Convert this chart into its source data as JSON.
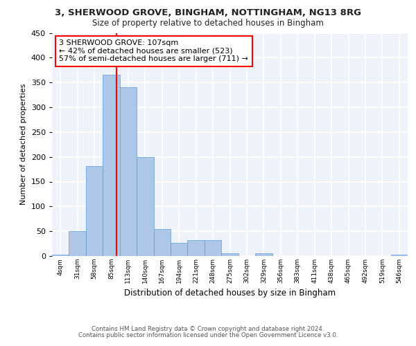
{
  "title_line1": "3, SHERWOOD GROVE, BINGHAM, NOTTINGHAM, NG13 8RG",
  "title_line2": "Size of property relative to detached houses in Bingham",
  "xlabel": "Distribution of detached houses by size in Bingham",
  "ylabel": "Number of detached properties",
  "footer_line1": "Contains HM Land Registry data © Crown copyright and database right 2024.",
  "footer_line2": "Contains public sector information licensed under the Open Government Licence v3.0.",
  "bar_edges": [
    4,
    31,
    58,
    85,
    112,
    139,
    166,
    193,
    220,
    247,
    274,
    301,
    328,
    355,
    382,
    409,
    436,
    463,
    490,
    517,
    544
  ],
  "bar_heights": [
    3,
    50,
    182,
    366,
    340,
    199,
    54,
    26,
    32,
    32,
    6,
    0,
    5,
    0,
    0,
    0,
    0,
    0,
    0,
    0,
    3
  ],
  "bar_color": "#aec6e8",
  "bar_edgecolor": "#5b9bd5",
  "property_line_x": 107,
  "property_line_color": "red",
  "annotation_text": "3 SHERWOOD GROVE: 107sqm\n← 42% of detached houses are smaller (523)\n57% of semi-detached houses are larger (711) →",
  "ylim": [
    0,
    450
  ],
  "background_color": "#eef2f9",
  "grid_color": "#ffffff",
  "tick_labels": [
    "4sqm",
    "31sqm",
    "58sqm",
    "85sqm",
    "113sqm",
    "140sqm",
    "167sqm",
    "194sqm",
    "221sqm",
    "248sqm",
    "275sqm",
    "302sqm",
    "329sqm",
    "356sqm",
    "383sqm",
    "411sqm",
    "438sqm",
    "465sqm",
    "492sqm",
    "519sqm",
    "546sqm"
  ]
}
